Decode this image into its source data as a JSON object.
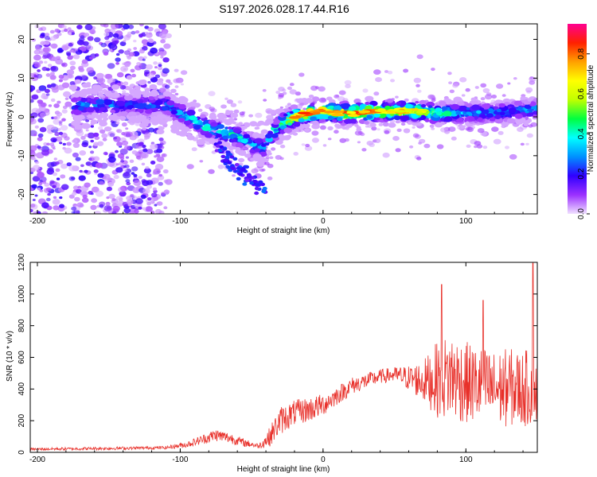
{
  "title": "S197.2026.028.17.44.R16",
  "chart_data": [
    {
      "type": "heatmap",
      "name": "spectrogram",
      "xlabel": "Height of straight line (km)",
      "ylabel": "Frequency (Hz)",
      "xlim": [
        -205,
        150
      ],
      "ylim": [
        -25,
        24
      ],
      "xticks": [
        -200,
        -100,
        0,
        100
      ],
      "xtick_labels": [
        "-200",
        "-100",
        "0",
        "100"
      ],
      "yticks": [
        -20,
        -10,
        0,
        10,
        20
      ],
      "ytick_labels": [
        "-20",
        "-10",
        "0",
        "10",
        "20"
      ],
      "colorbar": {
        "label": "Normalized spectral amplitude",
        "range": [
          0,
          0.95
        ],
        "ticks": [
          0.0,
          0.2,
          0.4,
          0.6,
          0.8
        ],
        "tick_labels": [
          "0.0",
          "0.2",
          "0.4",
          "0.6",
          "0.8"
        ],
        "colormap": [
          "#f0e0ff",
          "#9b30ff",
          "#3000ff",
          "#0090ff",
          "#00ffff",
          "#00ff40",
          "#c0ff00",
          "#ffff00",
          "#ffa000",
          "#ff2000",
          "#ff0090"
        ]
      },
      "ridge": {
        "x": [
          -170,
          -150,
          -130,
          -110,
          -100,
          -90,
          -80,
          -70,
          -60,
          -50,
          -42,
          -35,
          -30,
          -20,
          -10,
          0,
          10,
          20,
          40,
          60,
          80,
          100,
          120,
          150
        ],
        "y": [
          3,
          3,
          3,
          3,
          1,
          -1,
          -3,
          -4,
          -5,
          -7,
          -8,
          -4,
          -2,
          0,
          1,
          1.5,
          1,
          1,
          1.5,
          1.5,
          1,
          1,
          1,
          2
        ],
        "amplitude": [
          0.3,
          0.3,
          0.25,
          0.3,
          0.35,
          0.4,
          0.4,
          0.45,
          0.4,
          0.35,
          0.3,
          0.4,
          0.5,
          0.7,
          0.8,
          0.7,
          0.75,
          0.75,
          0.7,
          0.65,
          0.5,
          0.35,
          0.3,
          0.3
        ]
      }
    },
    {
      "type": "line",
      "name": "snr",
      "xlabel": "Height of straight line (km)",
      "ylabel": "SNR (10 * v/v)",
      "xlim": [
        -205,
        150
      ],
      "ylim": [
        0,
        1200
      ],
      "xticks": [
        -200,
        -100,
        0,
        100
      ],
      "xtick_labels": [
        "-200",
        "-100",
        "0",
        "100"
      ],
      "yticks": [
        0,
        200,
        400,
        600,
        800,
        1000,
        1200
      ],
      "ytick_labels": [
        "0",
        "200",
        "400",
        "600",
        "800",
        "1000",
        "1200"
      ],
      "color": "#e8302a",
      "envelope": {
        "x": [
          -205,
          -150,
          -110,
          -95,
          -85,
          -75,
          -65,
          -55,
          -45,
          -38,
          -30,
          -20,
          -10,
          0,
          10,
          20,
          30,
          40,
          50,
          60,
          70,
          80,
          90,
          100,
          110,
          120,
          130,
          140,
          150
        ],
        "y": [
          20,
          25,
          30,
          50,
          80,
          110,
          90,
          60,
          40,
          90,
          200,
          250,
          270,
          300,
          360,
          420,
          450,
          480,
          490,
          470,
          450,
          460,
          480,
          440,
          420,
          400,
          410,
          400,
          420
        ],
        "spread": [
          8,
          10,
          10,
          20,
          30,
          40,
          35,
          25,
          15,
          60,
          90,
          80,
          80,
          70,
          60,
          55,
          50,
          45,
          50,
          80,
          130,
          240,
          280,
          260,
          250,
          240,
          250,
          240,
          260
        ]
      },
      "peaks": [
        {
          "x": 83,
          "y": 1060
        },
        {
          "x": 112,
          "y": 960
        },
        {
          "x": 147,
          "y": 1195
        }
      ]
    }
  ]
}
